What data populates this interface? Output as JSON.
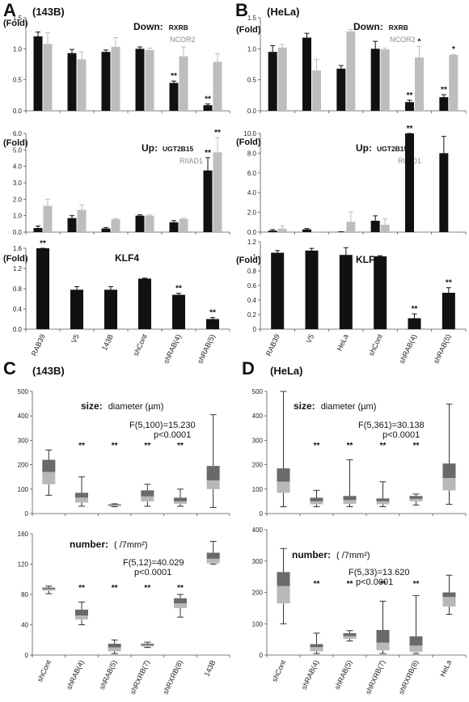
{
  "figure": {
    "panel_labels": [
      "A",
      "B",
      "C",
      "D"
    ],
    "cell_lines": [
      "(143B)",
      "(HeLa)",
      "(143B)",
      "(HeLa)"
    ],
    "fold_label": "(Fold)",
    "down_title": "Down:",
    "down_gene1": "RXRB",
    "down_gene2": "NCOR2",
    "up_title": "Up:",
    "up_gene1": "UGT2B15",
    "up_gene2": "RIIAD1",
    "klf_title": "KLF4",
    "size_title": "size:",
    "size_unit": "diameter (µm)",
    "number_title": "number:",
    "number_unit": "( /7mm²)",
    "sig_mark": "**",
    "sig_mark_single": "*",
    "stats": {
      "c_size_f": "F(5,100)=15.230",
      "c_size_p": "p<0.0001",
      "c_num_f": "F(5,12)=40.029",
      "c_num_p": "p<0.0001",
      "d_size_f": "F(5,361)=30.138",
      "d_size_p": "p<0.0001",
      "d_num_f": "F(5,33)=13.620",
      "d_num_p": "p<0.0001"
    }
  },
  "colors": {
    "black_series": "#111111",
    "gray_series": "#bdbdbd",
    "box_dark": "#6a6a6a",
    "box_light": "#b8b8b8"
  },
  "chart_data": [
    {
      "id": "A-down",
      "type": "bar",
      "categories": [
        "RAB39",
        "V5",
        "143B",
        "shCont",
        "shRAB(4)",
        "shRAB(5)"
      ],
      "ylim": [
        0,
        1.5
      ],
      "yticks": [
        0,
        0.5,
        1.0,
        1.5
      ],
      "ytick_labels": [
        "0.0",
        "0.5",
        "1.0",
        "1.5"
      ],
      "series": [
        {
          "name": "RXRB",
          "color": "black",
          "values": [
            1.2,
            0.93,
            0.95,
            1.0,
            0.45,
            0.09
          ],
          "errors": [
            0.07,
            0.06,
            0.03,
            0.03,
            0.03,
            0.02
          ]
        },
        {
          "name": "NCOR2",
          "color": "gray",
          "values": [
            1.08,
            0.83,
            1.03,
            0.98,
            0.88,
            0.79
          ],
          "errors": [
            0.18,
            0.12,
            0.15,
            0.03,
            0.15,
            0.13
          ]
        }
      ],
      "sig": [
        {
          "cat": 4,
          "series": 0,
          "mark": "**"
        },
        {
          "cat": 5,
          "series": 0,
          "mark": "**"
        }
      ]
    },
    {
      "id": "A-up",
      "type": "bar",
      "categories": [
        "RAB39",
        "V5",
        "143B",
        "shCont",
        "shRAB(4)",
        "shRAB(5)"
      ],
      "ylim": [
        0,
        6
      ],
      "yticks": [
        0,
        1,
        2,
        3,
        4,
        5,
        6
      ],
      "ytick_labels": [
        "0.0",
        "1.0",
        "2.0",
        "3.0",
        "4.0",
        "5.0",
        "6.0"
      ],
      "series": [
        {
          "name": "UGT2B15",
          "color": "black",
          "values": [
            0.25,
            0.85,
            0.22,
            1.0,
            0.6,
            3.75
          ],
          "errors": [
            0.12,
            0.15,
            0.06,
            0.05,
            0.1,
            0.78
          ]
        },
        {
          "name": "RIIAD1",
          "color": "gray",
          "values": [
            1.6,
            1.35,
            0.78,
            1.0,
            0.8,
            4.85
          ],
          "errors": [
            0.4,
            0.3,
            0.05,
            0.04,
            0.05,
            0.9
          ]
        }
      ],
      "sig": [
        {
          "cat": 5,
          "series": 0,
          "mark": "**"
        },
        {
          "cat": 5,
          "series": 1,
          "mark": "**"
        }
      ]
    },
    {
      "id": "A-klf4",
      "type": "bar",
      "categories": [
        "RAB39",
        "V5",
        "143B",
        "shCont",
        "shRAB(4)",
        "shRAB(5)"
      ],
      "ylim": [
        0,
        1.6
      ],
      "yticks": [
        0,
        0.4,
        0.8,
        1.2,
        1.6
      ],
      "ytick_labels": [
        "0.0",
        "0.4",
        "0.8",
        "1.2",
        "1.6"
      ],
      "series": [
        {
          "name": "KLF4",
          "color": "black",
          "values": [
            1.6,
            0.78,
            0.78,
            1.0,
            0.68,
            0.2
          ],
          "errors": [
            0.04,
            0.06,
            0.06,
            0.01,
            0.03,
            0.03
          ]
        }
      ],
      "sig": [
        {
          "cat": 0,
          "series": 0,
          "mark": "**"
        },
        {
          "cat": 4,
          "series": 0,
          "mark": "**"
        },
        {
          "cat": 5,
          "series": 0,
          "mark": "**"
        }
      ]
    },
    {
      "id": "B-down",
      "type": "bar",
      "categories": [
        "RAB39",
        "V5",
        "HeLa",
        "shCont",
        "shRAB(4)",
        "shRAB(5)"
      ],
      "ylim": [
        0,
        1.5
      ],
      "yticks": [
        0,
        0.5,
        1.0,
        1.5
      ],
      "ytick_labels": [
        "0.0",
        "0.5",
        "1.0",
        "1.5"
      ],
      "series": [
        {
          "name": "RXRB",
          "color": "black",
          "values": [
            0.95,
            1.18,
            0.68,
            1.0,
            0.14,
            0.22
          ],
          "errors": [
            0.1,
            0.07,
            0.05,
            0.12,
            0.03,
            0.04
          ]
        },
        {
          "name": "NCOR2",
          "color": "gray",
          "values": [
            1.02,
            0.65,
            1.28,
            0.99,
            0.86,
            0.9
          ],
          "errors": [
            0.05,
            0.18,
            0.03,
            0.02,
            0.18,
            0.01
          ]
        }
      ],
      "sig": [
        {
          "cat": 4,
          "series": 0,
          "mark": "**"
        },
        {
          "cat": 4,
          "series": 1,
          "mark": "*"
        },
        {
          "cat": 5,
          "series": 0,
          "mark": "**"
        },
        {
          "cat": 5,
          "series": 1,
          "mark": "*"
        }
      ]
    },
    {
      "id": "B-up",
      "type": "bar",
      "categories": [
        "RAB39",
        "V5",
        "HeLa",
        "shCont",
        "shRAB(4)",
        "shRAB(5)"
      ],
      "ylim": [
        0,
        10
      ],
      "yticks": [
        0,
        2,
        4,
        6,
        8,
        10
      ],
      "ytick_labels": [
        "0.0",
        "2.0",
        "4.0",
        "6.0",
        "8.0",
        "10.0"
      ],
      "series": [
        {
          "name": "UGT2B15",
          "color": "black",
          "values": [
            0.15,
            0.28,
            0.02,
            1.15,
            10.0,
            8.0
          ],
          "errors": [
            0.1,
            0.08,
            0.02,
            0.5,
            0.2,
            1.7
          ]
        },
        {
          "name": "RIIAD1",
          "color": "gray",
          "values": [
            0.35,
            0.02,
            1.05,
            0.75,
            0.02,
            0.02
          ],
          "errors": [
            0.3,
            0.01,
            1.0,
            0.6,
            0.01,
            0.01
          ]
        }
      ],
      "sig": [
        {
          "cat": 4,
          "series": 0,
          "mark": "**"
        }
      ]
    },
    {
      "id": "B-klf4",
      "type": "bar",
      "categories": [
        "RAB39",
        "V5",
        "HeLa",
        "shCont",
        "shRAB(4)",
        "shRAB(5)"
      ],
      "ylim": [
        0,
        1.2
      ],
      "yticks": [
        0,
        0.2,
        0.4,
        0.6,
        0.8,
        1.0,
        1.2
      ],
      "ytick_labels": [
        "0",
        "0.2",
        "0.4",
        "0.6",
        "0.8",
        "1",
        "1.2"
      ],
      "series": [
        {
          "name": "KLF4",
          "color": "black",
          "values": [
            1.05,
            1.08,
            1.02,
            1.0,
            0.15,
            0.5
          ],
          "errors": [
            0.03,
            0.03,
            0.1,
            0.01,
            0.06,
            0.07
          ]
        }
      ],
      "sig": [
        {
          "cat": 4,
          "series": 0,
          "mark": "**"
        },
        {
          "cat": 5,
          "series": 0,
          "mark": "**"
        }
      ]
    },
    {
      "id": "C-size",
      "type": "box",
      "categories": [
        "shCont",
        "shRAB(4)",
        "shRAB(5)",
        "shRXRB(7)",
        "shRXRB(8)",
        "143B"
      ],
      "ylim": [
        0,
        500
      ],
      "yticks": [
        0,
        100,
        200,
        300,
        400,
        500
      ],
      "ytick_labels": [
        "0",
        "100",
        "200",
        "300",
        "400",
        "500"
      ],
      "boxes": [
        {
          "min": 75,
          "q1": 120,
          "median": 170,
          "q3": 220,
          "max": 260
        },
        {
          "min": 30,
          "q1": 45,
          "median": 65,
          "q3": 85,
          "max": 150
        },
        {
          "min": 28,
          "q1": 30,
          "median": 34,
          "q3": 38,
          "max": 40
        },
        {
          "min": 30,
          "q1": 50,
          "median": 70,
          "q3": 95,
          "max": 120
        },
        {
          "min": 30,
          "q1": 40,
          "median": 50,
          "q3": 65,
          "max": 100
        },
        {
          "min": 25,
          "q1": 100,
          "median": 135,
          "q3": 195,
          "max": 405
        }
      ],
      "sig": [
        1,
        2,
        3,
        4
      ]
    },
    {
      "id": "C-number",
      "type": "box",
      "categories": [
        "shCont",
        "shRAB(4)",
        "shRAB(5)",
        "shRXRB(7)",
        "shRXRB(8)",
        "143B"
      ],
      "ylim": [
        0,
        160
      ],
      "yticks": [
        0,
        40,
        80,
        120,
        160
      ],
      "ytick_labels": [
        "0",
        "40",
        "80",
        "120",
        "160"
      ],
      "boxes": [
        {
          "min": 81,
          "q1": 85,
          "median": 87,
          "q3": 89,
          "max": 91
        },
        {
          "min": 40,
          "q1": 47,
          "median": 52,
          "q3": 60,
          "max": 70
        },
        {
          "min": 2,
          "q1": 5,
          "median": 10,
          "q3": 15,
          "max": 20
        },
        {
          "min": 10,
          "q1": 11,
          "median": 13,
          "q3": 15,
          "max": 17
        },
        {
          "min": 50,
          "q1": 62,
          "median": 68,
          "q3": 75,
          "max": 80
        },
        {
          "min": 120,
          "q1": 121,
          "median": 127,
          "q3": 135,
          "max": 150
        }
      ],
      "sig": [
        1,
        2,
        3,
        4
      ]
    },
    {
      "id": "D-size",
      "type": "box",
      "categories": [
        "shCont",
        "shRAB(4)",
        "shRAB(5)",
        "shRXRB(7)",
        "shRXRB(8)",
        "HeLa"
      ],
      "ylim": [
        0,
        500
      ],
      "yticks": [
        0,
        100,
        200,
        300,
        400,
        500
      ],
      "ytick_labels": [
        "0",
        "100",
        "200",
        "300",
        "400",
        "500"
      ],
      "boxes": [
        {
          "min": 28,
          "q1": 85,
          "median": 130,
          "q3": 185,
          "max": 500
        },
        {
          "min": 28,
          "q1": 38,
          "median": 50,
          "q3": 65,
          "max": 95
        },
        {
          "min": 28,
          "q1": 40,
          "median": 55,
          "q3": 72,
          "max": 220
        },
        {
          "min": 28,
          "q1": 38,
          "median": 50,
          "q3": 62,
          "max": 130
        },
        {
          "min": 35,
          "q1": 50,
          "median": 60,
          "q3": 72,
          "max": 80
        },
        {
          "min": 38,
          "q1": 95,
          "median": 145,
          "q3": 205,
          "max": 448
        }
      ],
      "sig": [
        1,
        2,
        3,
        4
      ]
    },
    {
      "id": "D-number",
      "type": "box",
      "categories": [
        "shCont",
        "shRAB(4)",
        "shRAB(5)",
        "shRXRB(7)",
        "shRXRB(8)",
        "HeLa"
      ],
      "ylim": [
        0,
        400
      ],
      "yticks": [
        0,
        100,
        200,
        300,
        400
      ],
      "ytick_labels": [
        "0",
        "100",
        "200",
        "300",
        "400"
      ],
      "boxes": [
        {
          "min": 100,
          "q1": 165,
          "median": 220,
          "q3": 265,
          "max": 340
        },
        {
          "min": 5,
          "q1": 12,
          "median": 25,
          "q3": 35,
          "max": 70
        },
        {
          "min": 45,
          "q1": 52,
          "median": 60,
          "q3": 70,
          "max": 78
        },
        {
          "min": 5,
          "q1": 15,
          "median": 40,
          "q3": 80,
          "max": 172
        },
        {
          "min": 5,
          "q1": 10,
          "median": 30,
          "q3": 60,
          "max": 190
        },
        {
          "min": 130,
          "q1": 155,
          "median": 185,
          "q3": 200,
          "max": 255
        }
      ],
      "sig": [
        1,
        2,
        3,
        4
      ]
    }
  ]
}
